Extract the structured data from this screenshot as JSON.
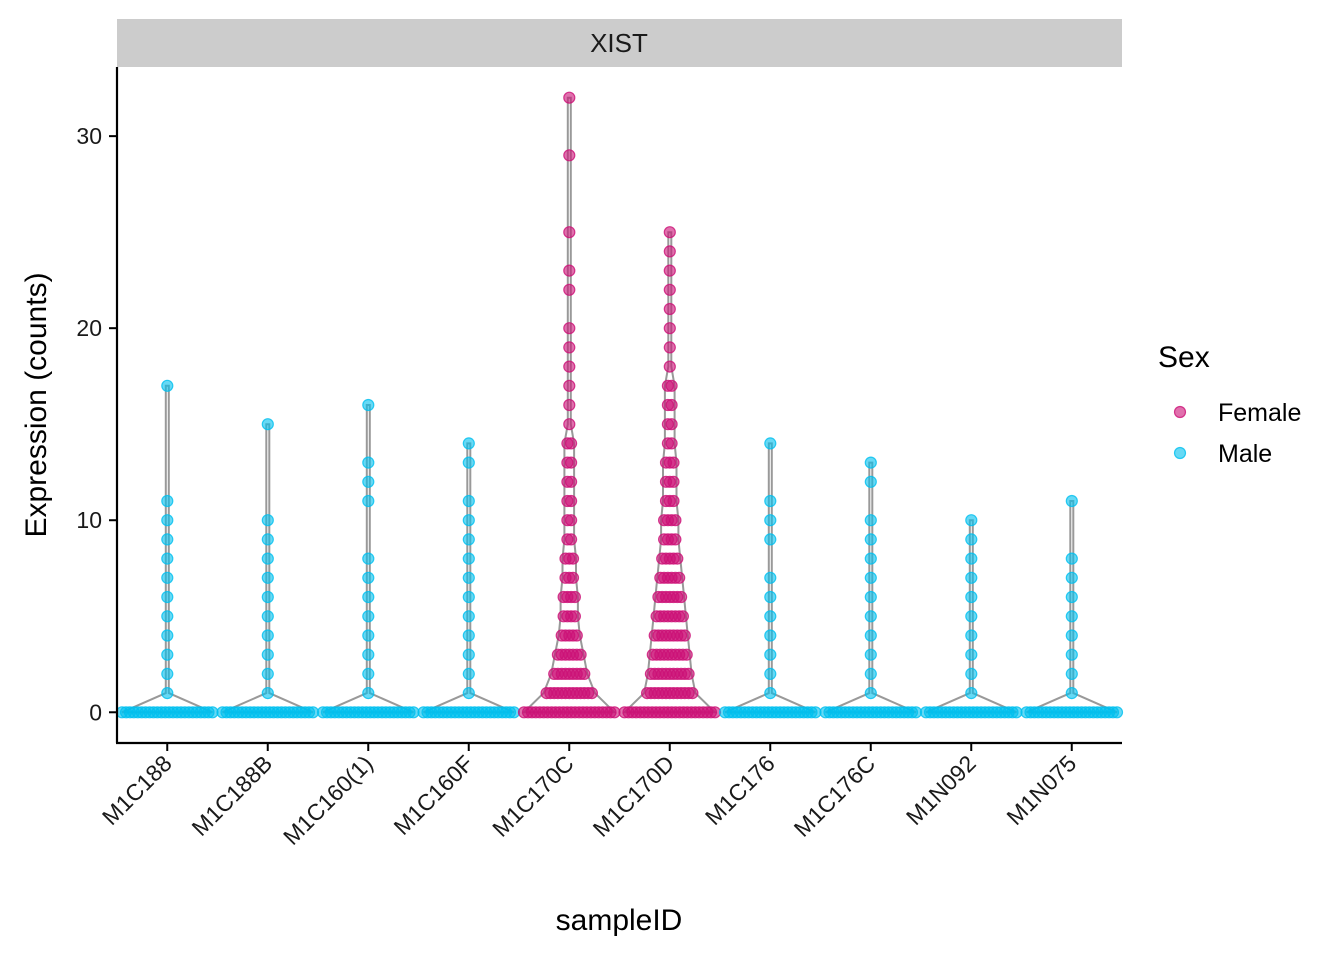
{
  "chart_data": {
    "type": "violin-dot",
    "facet": "XIST",
    "xlabel": "sampleID",
    "ylabel": "Expression (counts)",
    "ylim": [
      -1.6,
      33.6
    ],
    "yticks": [
      0,
      10,
      20,
      30
    ],
    "categories": [
      "M1C188",
      "M1C188B",
      "M1C160(1)",
      "M1C160F",
      "M1C170C",
      "M1C170D",
      "M1C176",
      "M1C176C",
      "M1N092",
      "M1N075"
    ],
    "legend": {
      "title": "Sex",
      "entries": [
        {
          "label": "Female",
          "color": "#cc1177"
        },
        {
          "label": "Male",
          "color": "#00bfef"
        }
      ]
    },
    "series": [
      {
        "name": "M1C188",
        "sex": "Male",
        "max": 17,
        "levels": [
          [
            0,
            24
          ],
          [
            1,
            1
          ],
          [
            2,
            1
          ],
          [
            3,
            1
          ],
          [
            4,
            1
          ],
          [
            5,
            1
          ],
          [
            6,
            1
          ],
          [
            7,
            1
          ],
          [
            8,
            1
          ],
          [
            9,
            1
          ],
          [
            10,
            1
          ],
          [
            11,
            1
          ],
          [
            17,
            1
          ]
        ]
      },
      {
        "name": "M1C188B",
        "sex": "Male",
        "max": 15,
        "levels": [
          [
            0,
            24
          ],
          [
            1,
            1
          ],
          [
            2,
            1
          ],
          [
            3,
            1
          ],
          [
            4,
            1
          ],
          [
            5,
            1
          ],
          [
            6,
            1
          ],
          [
            7,
            1
          ],
          [
            8,
            1
          ],
          [
            9,
            1
          ],
          [
            10,
            1
          ],
          [
            15,
            1
          ]
        ]
      },
      {
        "name": "M1C160(1)",
        "sex": "Male",
        "max": 16,
        "levels": [
          [
            0,
            24
          ],
          [
            1,
            1
          ],
          [
            2,
            1
          ],
          [
            3,
            1
          ],
          [
            4,
            1
          ],
          [
            5,
            1
          ],
          [
            6,
            1
          ],
          [
            7,
            1
          ],
          [
            8,
            1
          ],
          [
            11,
            1
          ],
          [
            12,
            1
          ],
          [
            13,
            1
          ],
          [
            16,
            1
          ]
        ]
      },
      {
        "name": "M1C160F",
        "sex": "Male",
        "max": 14,
        "levels": [
          [
            0,
            24
          ],
          [
            1,
            1
          ],
          [
            2,
            1
          ],
          [
            3,
            1
          ],
          [
            4,
            1
          ],
          [
            5,
            1
          ],
          [
            6,
            1
          ],
          [
            7,
            1
          ],
          [
            8,
            1
          ],
          [
            9,
            1
          ],
          [
            10,
            1
          ],
          [
            11,
            1
          ],
          [
            13,
            1
          ],
          [
            14,
            1
          ]
        ]
      },
      {
        "name": "M1C170C",
        "sex": "Female",
        "max": 32,
        "levels": [
          [
            0,
            24
          ],
          [
            1,
            13
          ],
          [
            2,
            9
          ],
          [
            3,
            7
          ],
          [
            4,
            5
          ],
          [
            5,
            4
          ],
          [
            6,
            4
          ],
          [
            7,
            3
          ],
          [
            8,
            3
          ],
          [
            9,
            2
          ],
          [
            10,
            2
          ],
          [
            11,
            2
          ],
          [
            12,
            2
          ],
          [
            13,
            2
          ],
          [
            14,
            2
          ],
          [
            15,
            1
          ],
          [
            16,
            1
          ],
          [
            17,
            1
          ],
          [
            18,
            1
          ],
          [
            19,
            1
          ],
          [
            20,
            1
          ],
          [
            22,
            1
          ],
          [
            23,
            1
          ],
          [
            25,
            1
          ],
          [
            29,
            1
          ],
          [
            32,
            1
          ]
        ]
      },
      {
        "name": "M1C170D",
        "sex": "Female",
        "max": 25,
        "levels": [
          [
            0,
            24
          ],
          [
            1,
            13
          ],
          [
            2,
            11
          ],
          [
            3,
            10
          ],
          [
            4,
            9
          ],
          [
            5,
            8
          ],
          [
            6,
            7
          ],
          [
            7,
            6
          ],
          [
            8,
            5
          ],
          [
            9,
            4
          ],
          [
            10,
            4
          ],
          [
            11,
            3
          ],
          [
            12,
            3
          ],
          [
            13,
            3
          ],
          [
            14,
            2
          ],
          [
            15,
            2
          ],
          [
            16,
            2
          ],
          [
            17,
            2
          ],
          [
            18,
            1
          ],
          [
            19,
            1
          ],
          [
            20,
            1
          ],
          [
            21,
            1
          ],
          [
            22,
            1
          ],
          [
            23,
            1
          ],
          [
            24,
            1
          ],
          [
            25,
            1
          ]
        ]
      },
      {
        "name": "M1C176",
        "sex": "Male",
        "max": 14,
        "levels": [
          [
            0,
            24
          ],
          [
            1,
            1
          ],
          [
            2,
            1
          ],
          [
            3,
            1
          ],
          [
            4,
            1
          ],
          [
            5,
            1
          ],
          [
            6,
            1
          ],
          [
            7,
            1
          ],
          [
            9,
            1
          ],
          [
            10,
            1
          ],
          [
            11,
            1
          ],
          [
            14,
            1
          ]
        ]
      },
      {
        "name": "M1C176C",
        "sex": "Male",
        "max": 13,
        "levels": [
          [
            0,
            24
          ],
          [
            1,
            1
          ],
          [
            2,
            1
          ],
          [
            3,
            1
          ],
          [
            4,
            1
          ],
          [
            5,
            1
          ],
          [
            6,
            1
          ],
          [
            7,
            1
          ],
          [
            8,
            1
          ],
          [
            9,
            1
          ],
          [
            10,
            1
          ],
          [
            12,
            1
          ],
          [
            13,
            1
          ]
        ]
      },
      {
        "name": "M1N092",
        "sex": "Male",
        "max": 10,
        "levels": [
          [
            0,
            24
          ],
          [
            1,
            1
          ],
          [
            2,
            1
          ],
          [
            3,
            1
          ],
          [
            4,
            1
          ],
          [
            5,
            1
          ],
          [
            6,
            1
          ],
          [
            7,
            1
          ],
          [
            8,
            1
          ],
          [
            9,
            1
          ],
          [
            10,
            1
          ]
        ]
      },
      {
        "name": "M1N075",
        "sex": "Male",
        "max": 11,
        "levels": [
          [
            0,
            24
          ],
          [
            1,
            1
          ],
          [
            2,
            1
          ],
          [
            3,
            1
          ],
          [
            4,
            1
          ],
          [
            5,
            1
          ],
          [
            6,
            1
          ],
          [
            7,
            1
          ],
          [
            8,
            1
          ],
          [
            11,
            1
          ]
        ]
      }
    ]
  }
}
